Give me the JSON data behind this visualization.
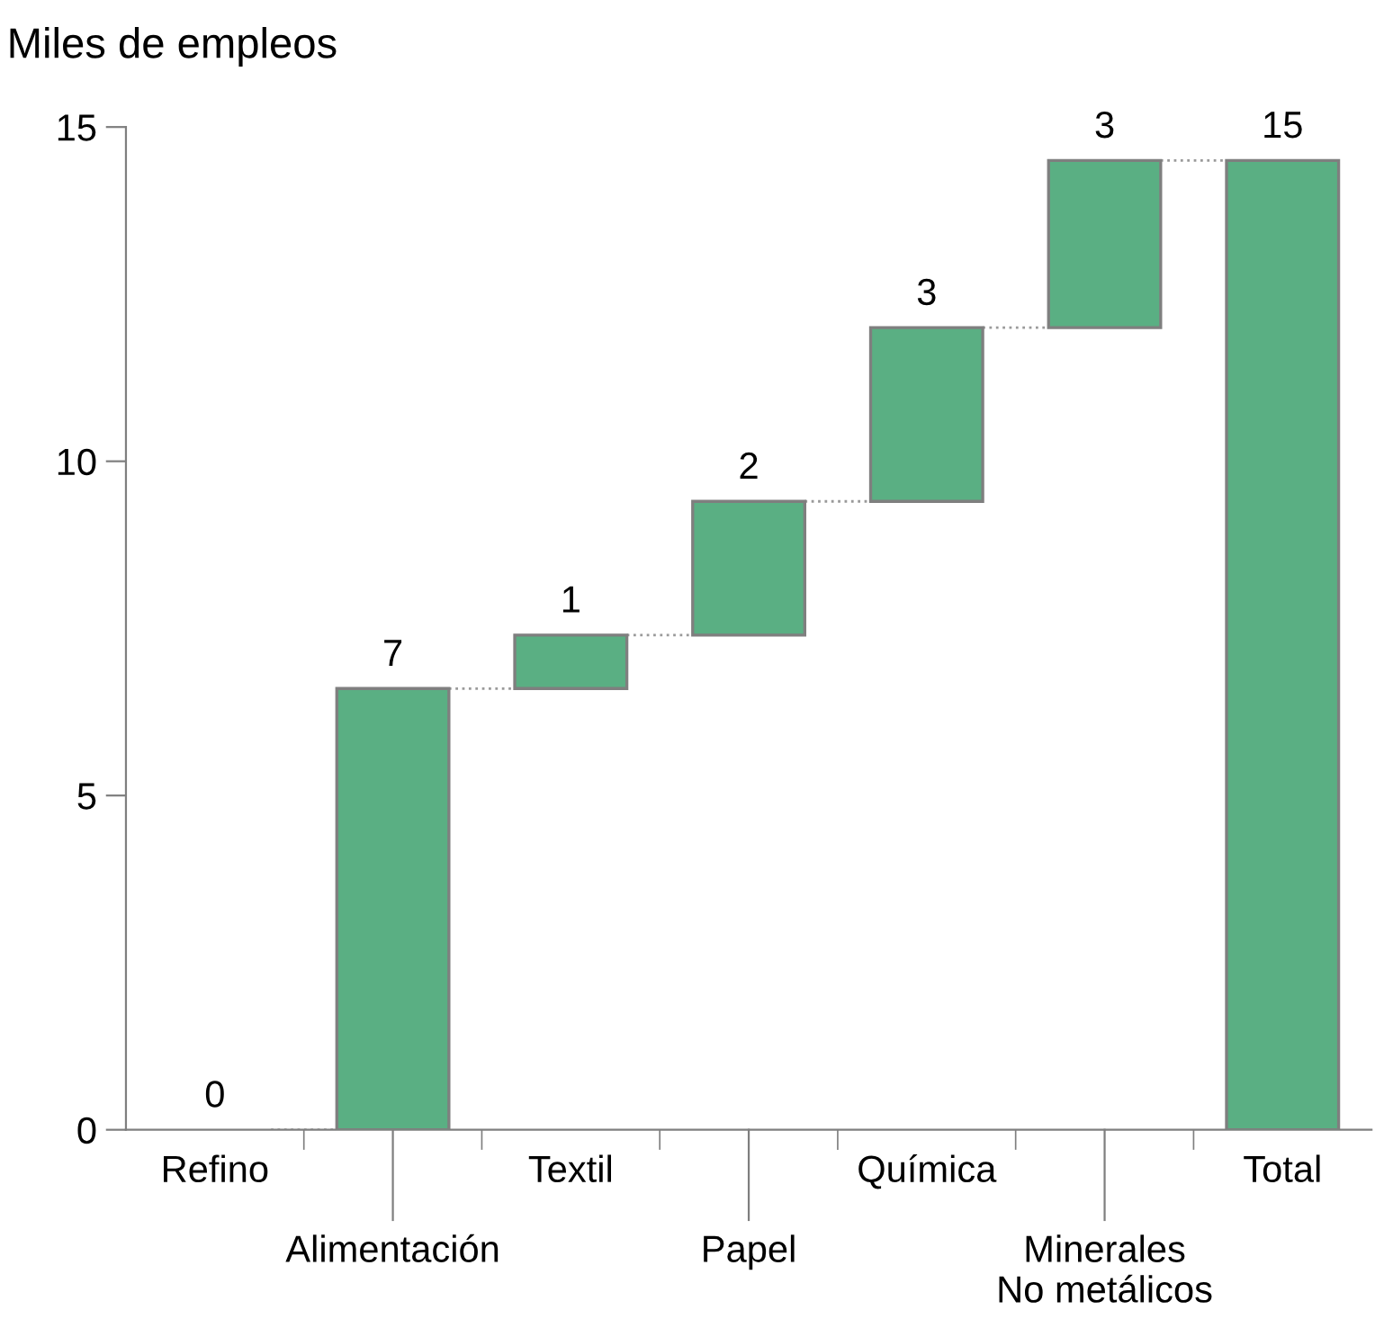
{
  "chart_data": {
    "type": "bar",
    "ylabel": "Miles de empleos",
    "categories": [
      "Refino",
      "Alimentación",
      "Textil",
      "Papel",
      "Química",
      "Minerales\nNo metálicos",
      "Total"
    ],
    "values": [
      0,
      6.6,
      0.8,
      2.0,
      2.6,
      2.5,
      14.5
    ],
    "base": [
      null,
      0,
      6.6,
      7.4,
      9.4,
      12.0,
      0
    ],
    "value_labels": [
      "0",
      "7",
      "1",
      "2",
      "3",
      "3",
      "15"
    ],
    "color": "#5aaf83",
    "ylim": [
      0,
      15
    ],
    "yticks": [
      0,
      5,
      10,
      15
    ],
    "grid": false
  }
}
